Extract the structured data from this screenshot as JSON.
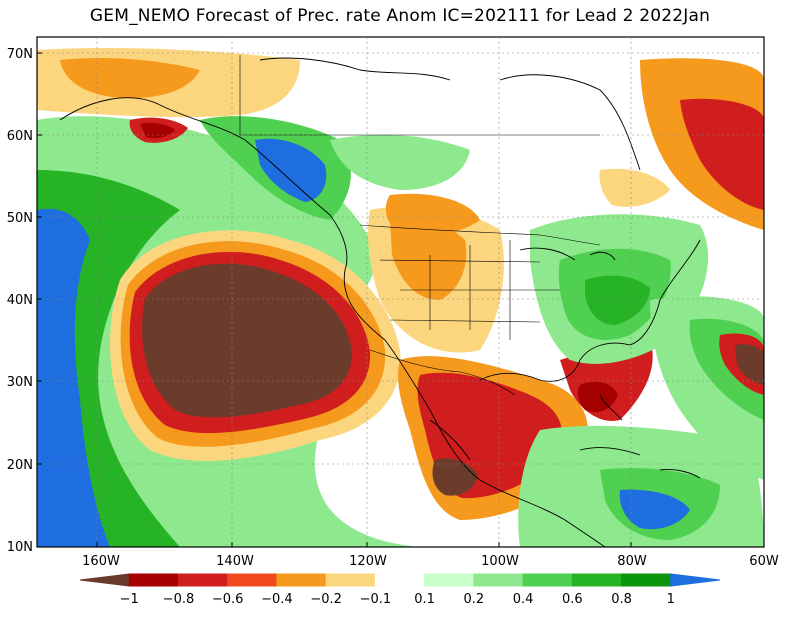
{
  "title": "GEM_NEMO Forecast of Prec. rate Anom IC=202111 for Lead 2 2022Jan",
  "lat_labels": [
    "70N",
    "60N",
    "50N",
    "40N",
    "30N",
    "20N",
    "10N"
  ],
  "lon_labels": [
    "160W",
    "140W",
    "120W",
    "100W",
    "80W",
    "60W"
  ],
  "colorbar": {
    "labels": [
      "−1",
      "−0.8",
      "−0.6",
      "−0.4",
      "−0.2",
      "−0.1",
      "0.1",
      "0.2",
      "0.4",
      "0.6",
      "0.8",
      "1"
    ],
    "colors": [
      "#6b3b2c",
      "#a50000",
      "#d01e1e",
      "#f04a1c",
      "#f59a1d",
      "#fcd67e",
      "#ffffff",
      "#c8ffc8",
      "#8ee88e",
      "#50d050",
      "#26b426",
      "#0a960a",
      "#1e6ee0"
    ]
  },
  "map_colors": {
    "strong_dry": "#6b3b2c",
    "dry": "#a50000",
    "mod_dry": "#e03a1a",
    "light_dry": "#f59a1d",
    "slight_dry": "#fcd67e",
    "slight_wet": "#c8ffc8",
    "light_wet": "#8ee88e",
    "mod_wet": "#50d050",
    "wet": "#26b426",
    "very_wet": "#0a960a",
    "strong_wet": "#1e6ee0"
  }
}
